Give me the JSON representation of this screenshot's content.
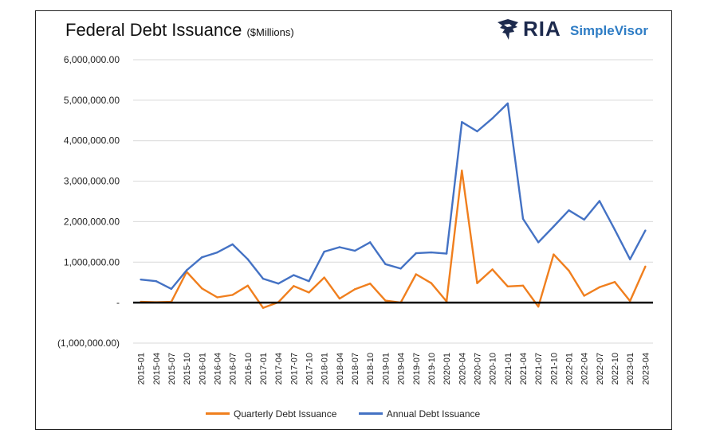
{
  "header": {
    "title": "Federal Debt Issuance",
    "subtitle": "($Millions)"
  },
  "logo": {
    "brand": "RIA",
    "product": "SimpleVisor",
    "brand_color": "#1d2a4d",
    "product_color": "#2f7dc5"
  },
  "chart_data": {
    "type": "line",
    "title": "Federal Debt Issuance",
    "subtitle": "($Millions)",
    "xlabel": "",
    "ylabel": "",
    "ylim": [
      -1000000,
      6000000
    ],
    "y_tick_values": [
      6000000,
      5000000,
      4000000,
      3000000,
      2000000,
      1000000,
      0,
      -1000000
    ],
    "y_tick_labels": [
      "6,000,000.00",
      "5,000,000.00",
      "4,000,000.00",
      "3,000,000.00",
      "2,000,000.00",
      "1,000,000.00",
      "-",
      "(1,000,000.00)"
    ],
    "grid": true,
    "legend_position": "bottom",
    "categories": [
      "2015-01",
      "2015-04",
      "2015-07",
      "2015-10",
      "2016-01",
      "2016-04",
      "2016-07",
      "2016-10",
      "2017-01",
      "2017-04",
      "2017-07",
      "2017-10",
      "2018-01",
      "2018-04",
      "2018-07",
      "2018-10",
      "2019-01",
      "2019-04",
      "2019-07",
      "2019-10",
      "2020-01",
      "2020-04",
      "2020-07",
      "2020-10",
      "2021-01",
      "2021-04",
      "2021-07",
      "2021-10",
      "2022-01",
      "2022-04",
      "2022-07",
      "2022-10",
      "2023-01",
      "2023-04"
    ],
    "series": [
      {
        "name": "Quarterly Debt Issuance",
        "color": "#f07f1e",
        "values": [
          20000,
          10000,
          20000,
          760000,
          350000,
          130000,
          190000,
          420000,
          -130000,
          10000,
          410000,
          250000,
          620000,
          100000,
          330000,
          470000,
          50000,
          0,
          700000,
          480000,
          30000,
          3260000,
          480000,
          820000,
          400000,
          420000,
          -100000,
          1190000,
          790000,
          170000,
          380000,
          510000,
          40000,
          890000
        ]
      },
      {
        "name": "Annual Debt Issuance",
        "color": "#4472c4",
        "values": [
          570000,
          530000,
          340000,
          800000,
          1120000,
          1240000,
          1440000,
          1070000,
          590000,
          470000,
          680000,
          530000,
          1260000,
          1370000,
          1280000,
          1490000,
          950000,
          840000,
          1220000,
          1240000,
          1210000,
          4460000,
          4230000,
          4550000,
          4920000,
          2070000,
          1490000,
          1880000,
          2280000,
          2050000,
          2510000,
          1800000,
          1070000,
          1780000
        ]
      }
    ]
  }
}
